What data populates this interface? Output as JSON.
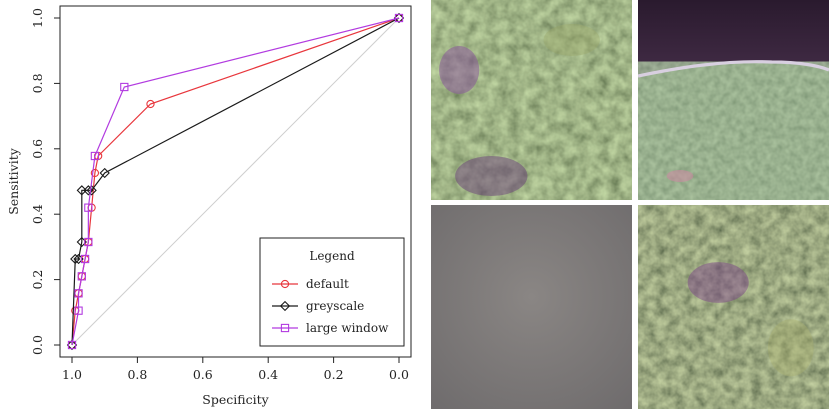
{
  "chart_data": {
    "type": "line",
    "xlabel": "Specificity",
    "ylabel": "Sensitivity",
    "xlim": [
      1.0,
      0.0
    ],
    "ylim": [
      0.0,
      1.0
    ],
    "x_reversed": true,
    "xticks": [
      "1.0",
      "0.8",
      "0.6",
      "0.4",
      "0.2",
      "0.0"
    ],
    "yticks": [
      "0.0",
      "0.2",
      "0.4",
      "0.6",
      "0.8",
      "1.0"
    ],
    "grid": false,
    "reference_line": "diagonal",
    "legend": {
      "title": "Legend",
      "placement": "bottom-right",
      "entries": [
        "default",
        "greyscale",
        "large window"
      ]
    },
    "series": [
      {
        "name": "default",
        "color": "#e8363c",
        "marker": "circle",
        "x": [
          1.0,
          0.99,
          0.98,
          0.97,
          0.96,
          0.95,
          0.94,
          0.93,
          0.92,
          0.76,
          0.0
        ],
        "y": [
          0.0,
          0.105,
          0.158,
          0.21,
          0.263,
          0.315,
          0.42,
          0.526,
          0.578,
          0.737,
          1.0
        ]
      },
      {
        "name": "greyscale",
        "color": "#1a1a1a",
        "marker": "diamond",
        "x": [
          1.0,
          0.99,
          0.98,
          0.97,
          0.97,
          0.95,
          0.94,
          0.9,
          0.0
        ],
        "y": [
          0.0,
          0.263,
          0.263,
          0.315,
          0.473,
          0.473,
          0.473,
          0.526,
          1.0
        ]
      },
      {
        "name": "large window",
        "color": "#b23be0",
        "marker": "square",
        "x": [
          1.0,
          0.98,
          0.98,
          0.97,
          0.96,
          0.95,
          0.95,
          0.93,
          0.84,
          0.0
        ],
        "y": [
          0.0,
          0.105,
          0.158,
          0.21,
          0.263,
          0.315,
          0.42,
          0.578,
          0.789,
          1.0
        ]
      }
    ]
  }
}
